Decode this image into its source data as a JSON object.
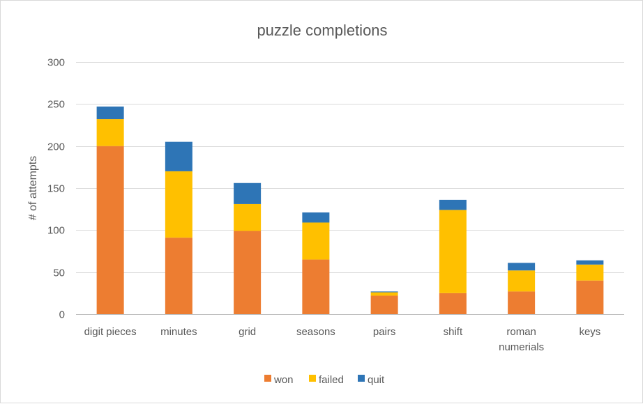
{
  "chart_data": {
    "type": "bar",
    "stacked": true,
    "title": "puzzle completions",
    "xlabel": "",
    "ylabel": "# of attempts",
    "ylim": [
      0,
      300
    ],
    "yticks": [
      "0",
      "50",
      "100",
      "150",
      "200",
      "250",
      "300"
    ],
    "grid": true,
    "legend_position": "bottom",
    "categories": [
      [
        "digit pieces"
      ],
      [
        "minutes"
      ],
      [
        "grid"
      ],
      [
        "seasons"
      ],
      [
        "pairs"
      ],
      [
        "shift"
      ],
      [
        "roman",
        "numerials"
      ],
      [
        "keys"
      ]
    ],
    "series": [
      {
        "name": "won",
        "color": "#ED7D31",
        "values": [
          200,
          91,
          99,
          65,
          22,
          25,
          27,
          40
        ]
      },
      {
        "name": "failed",
        "color": "#FFC000",
        "values": [
          32,
          79,
          32,
          44,
          4,
          99,
          25,
          19
        ]
      },
      {
        "name": "quit",
        "color": "#2E75B6",
        "values": [
          15,
          35,
          25,
          12,
          1,
          12,
          9,
          5
        ]
      }
    ]
  }
}
